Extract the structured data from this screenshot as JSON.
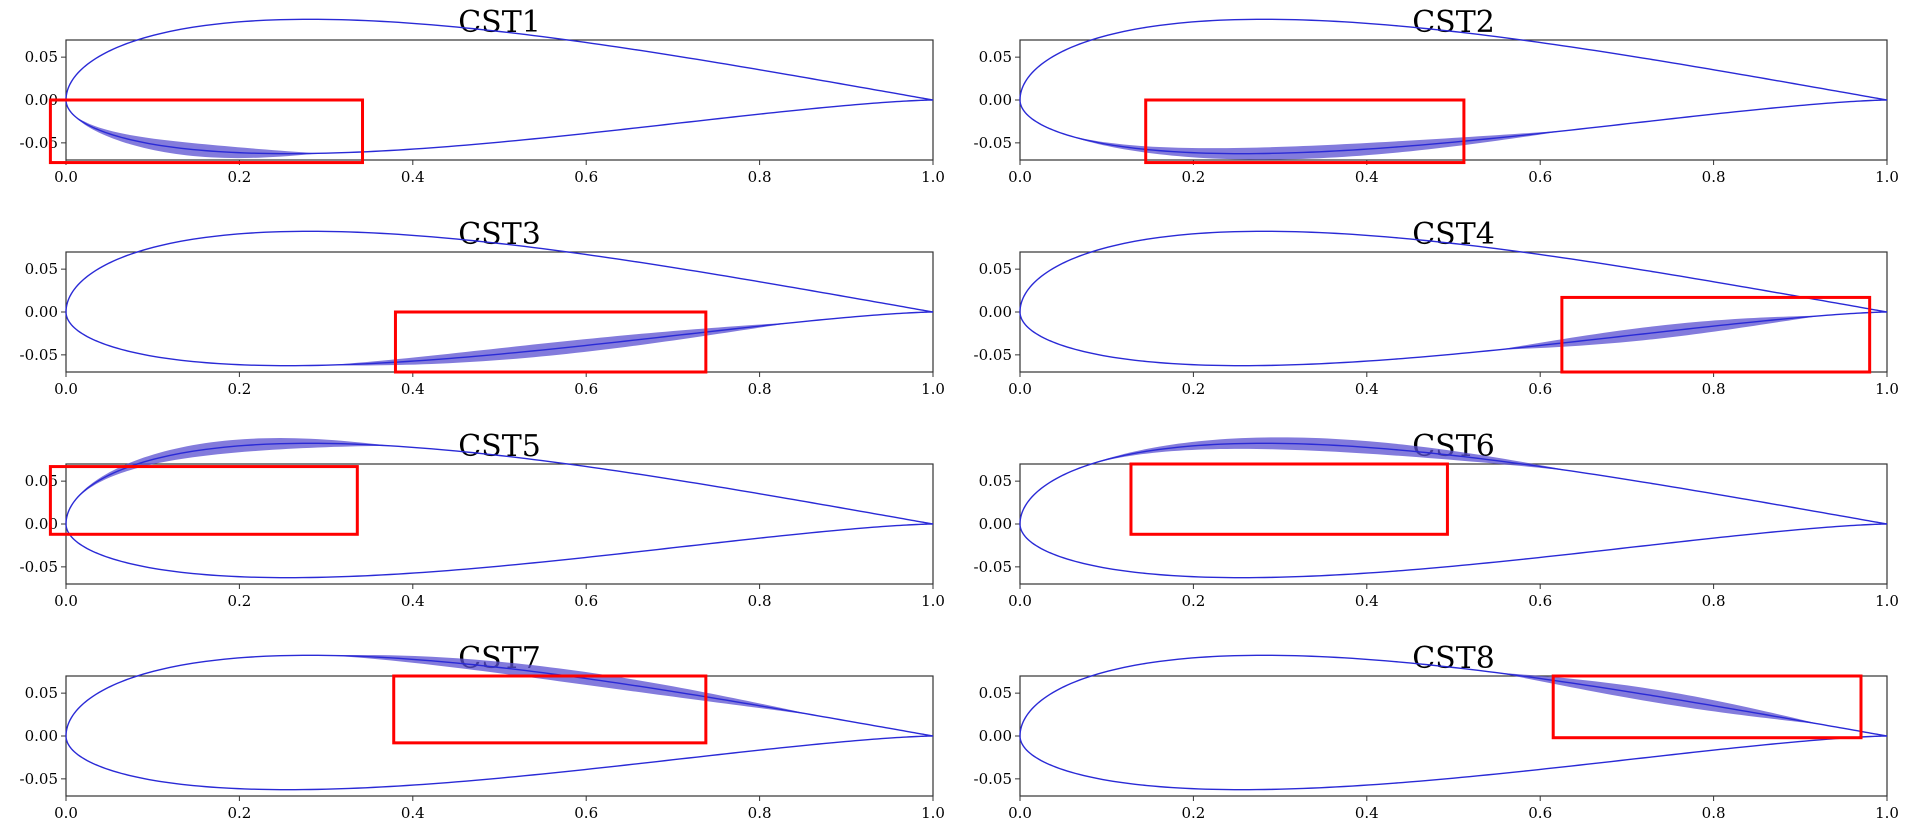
{
  "colors": {
    "airfoil": "#2a2ad6",
    "band": "#5a4fd0",
    "highlight": "#ff0000"
  },
  "chart_data": [
    {
      "type": "line",
      "title": "CST1",
      "surface": "lower",
      "band": [
        0.0,
        0.35
      ],
      "highlight": {
        "x": [
          -0.018,
          0.342
        ],
        "y": [
          -0.073,
          0.0
        ]
      },
      "xticks": [
        "0.0",
        "0.2",
        "0.4",
        "0.6",
        "0.8",
        "1.0"
      ],
      "yticks": [
        "0.05",
        "0.00",
        "-0.05"
      ],
      "xlim": [
        0,
        1
      ],
      "ylim": [
        -0.07,
        0.07
      ]
    },
    {
      "type": "line",
      "title": "CST2",
      "surface": "lower",
      "band": [
        0.05,
        0.75
      ],
      "highlight": {
        "x": [
          0.145,
          0.512
        ],
        "y": [
          -0.073,
          0.0
        ]
      },
      "xticks": [
        "0.0",
        "0.2",
        "0.4",
        "0.6",
        "0.8",
        "1.0"
      ],
      "yticks": [
        "0.05",
        "0.00",
        "-0.05"
      ],
      "xlim": [
        0,
        1
      ],
      "ylim": [
        -0.07,
        0.07
      ]
    },
    {
      "type": "line",
      "title": "CST3",
      "surface": "lower",
      "band": [
        0.3,
        0.95
      ],
      "highlight": {
        "x": [
          0.38,
          0.738
        ],
        "y": [
          -0.07,
          0.0
        ]
      },
      "xticks": [
        "0.0",
        "0.2",
        "0.4",
        "0.6",
        "0.8",
        "1.0"
      ],
      "yticks": [
        "0.05",
        "0.00",
        "-0.05"
      ],
      "xlim": [
        0,
        1
      ],
      "ylim": [
        -0.07,
        0.07
      ]
    },
    {
      "type": "line",
      "title": "CST4",
      "surface": "lower",
      "band": [
        0.55,
        1.0
      ],
      "highlight": {
        "x": [
          0.625,
          0.98
        ],
        "y": [
          -0.07,
          0.017
        ]
      },
      "xticks": [
        "0.0",
        "0.2",
        "0.4",
        "0.6",
        "0.8",
        "1.0"
      ],
      "yticks": [
        "0.05",
        "0.00",
        "-0.05"
      ],
      "xlim": [
        0,
        1
      ],
      "ylim": [
        -0.07,
        0.07
      ]
    },
    {
      "type": "line",
      "title": "CST5",
      "surface": "upper",
      "band": [
        0.0,
        0.45
      ],
      "highlight": {
        "x": [
          -0.018,
          0.336
        ],
        "y": [
          -0.012,
          0.067
        ]
      },
      "xticks": [
        "0.0",
        "0.2",
        "0.4",
        "0.6",
        "0.8",
        "1.0"
      ],
      "yticks": [
        "0.05",
        "0.00",
        "-0.05"
      ],
      "xlim": [
        0,
        1
      ],
      "ylim": [
        -0.07,
        0.07
      ]
    },
    {
      "type": "line",
      "title": "CST6",
      "surface": "upper",
      "band": [
        0.08,
        0.75
      ],
      "highlight": {
        "x": [
          0.128,
          0.493
        ],
        "y": [
          -0.012,
          0.07
        ]
      },
      "xticks": [
        "0.0",
        "0.2",
        "0.4",
        "0.6",
        "0.8",
        "1.0"
      ],
      "yticks": [
        "0.05",
        "0.00",
        "-0.05"
      ],
      "xlim": [
        0,
        1
      ],
      "ylim": [
        -0.07,
        0.07
      ]
    },
    {
      "type": "line",
      "title": "CST7",
      "surface": "upper",
      "band": [
        0.3,
        0.98
      ],
      "highlight": {
        "x": [
          0.378,
          0.738
        ],
        "y": [
          -0.008,
          0.07
        ]
      },
      "xticks": [
        "0.0",
        "0.2",
        "0.4",
        "0.6",
        "0.8",
        "1.0"
      ],
      "yticks": [
        "0.05",
        "0.00",
        "-0.05"
      ],
      "xlim": [
        0,
        1
      ],
      "ylim": [
        -0.07,
        0.07
      ]
    },
    {
      "type": "line",
      "title": "CST8",
      "surface": "upper",
      "band": [
        0.55,
        1.0
      ],
      "highlight": {
        "x": [
          0.615,
          0.97
        ],
        "y": [
          -0.002,
          0.07
        ]
      },
      "xticks": [
        "0.0",
        "0.2",
        "0.4",
        "0.6",
        "0.8",
        "1.0"
      ],
      "yticks": [
        "0.05",
        "0.00",
        "-0.05"
      ],
      "xlim": [
        0,
        1
      ],
      "ylim": [
        -0.07,
        0.07
      ]
    }
  ]
}
